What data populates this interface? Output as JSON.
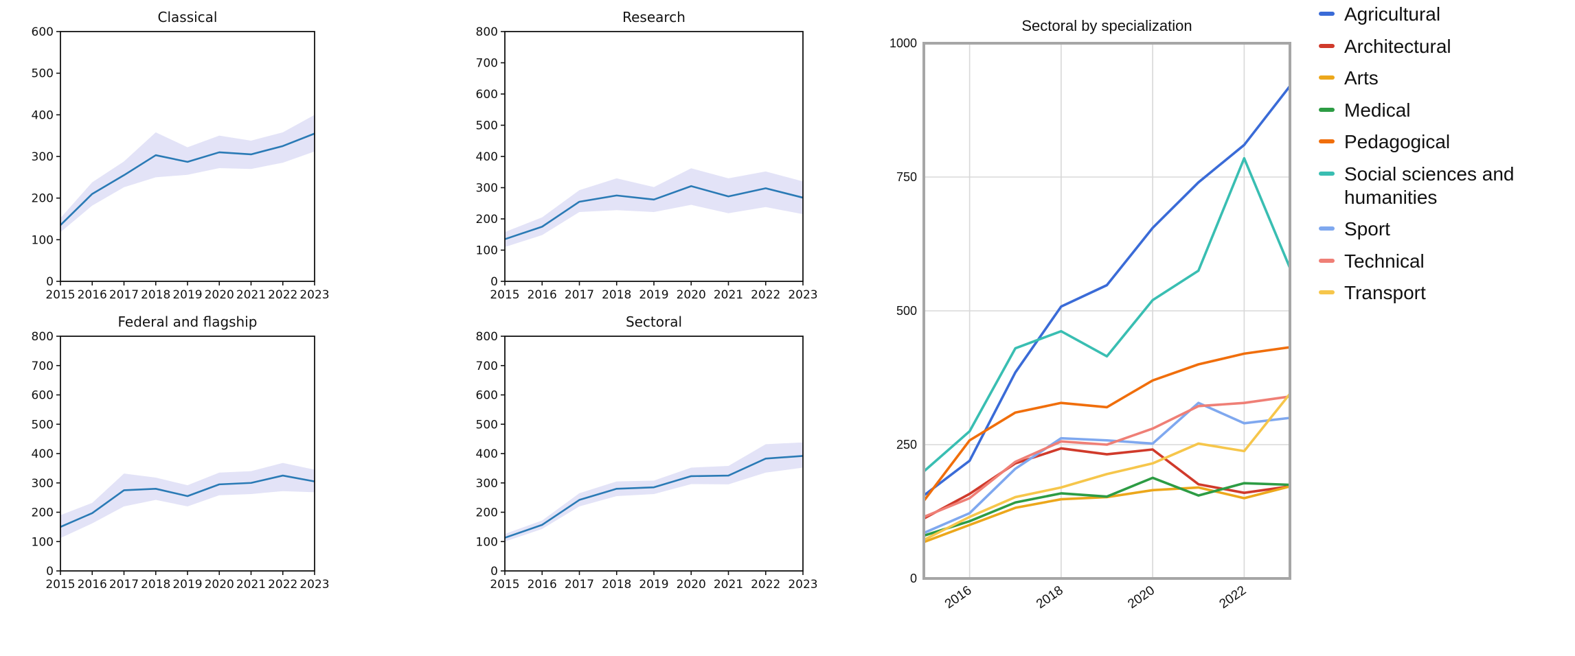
{
  "page": {
    "background": "#ffffff"
  },
  "chart_data": {
    "type": "line",
    "small_multiples": {
      "years": [
        2015,
        2016,
        2017,
        2018,
        2019,
        2020,
        2021,
        2022,
        2023
      ],
      "line_color": "#2A7AB5",
      "band_color": "#DCDCF5",
      "charts": [
        {
          "title": "Classical",
          "ylim": [
            0,
            600
          ],
          "yticks": [
            0,
            100,
            200,
            300,
            400,
            500,
            600
          ],
          "mean": [
            135,
            210,
            255,
            303,
            287,
            310,
            305,
            325,
            355
          ],
          "lower": [
            118,
            182,
            226,
            250,
            256,
            272,
            270,
            285,
            312
          ],
          "upper": [
            152,
            238,
            288,
            358,
            322,
            350,
            338,
            358,
            400
          ]
        },
        {
          "title": "Research",
          "ylim": [
            0,
            800
          ],
          "yticks": [
            0,
            100,
            200,
            300,
            400,
            500,
            600,
            700,
            800
          ],
          "mean": [
            135,
            175,
            255,
            275,
            262,
            305,
            272,
            298,
            268
          ],
          "lower": [
            110,
            148,
            222,
            228,
            222,
            245,
            218,
            238,
            215
          ],
          "upper": [
            158,
            205,
            292,
            330,
            302,
            362,
            330,
            352,
            320
          ]
        },
        {
          "title": "Federal and flagship",
          "ylim": [
            0,
            800
          ],
          "yticks": [
            0,
            100,
            200,
            300,
            400,
            500,
            600,
            700,
            800
          ],
          "mean": [
            150,
            197,
            275,
            280,
            255,
            295,
            300,
            325,
            305
          ],
          "lower": [
            112,
            162,
            220,
            242,
            220,
            258,
            262,
            272,
            268
          ],
          "upper": [
            190,
            232,
            332,
            318,
            292,
            335,
            340,
            368,
            345
          ]
        },
        {
          "title": "Sectoral",
          "ylim": [
            0,
            800
          ],
          "yticks": [
            0,
            100,
            200,
            300,
            400,
            500,
            600,
            700,
            800
          ],
          "mean": [
            113,
            157,
            242,
            280,
            285,
            323,
            325,
            383,
            392
          ],
          "lower": [
            100,
            143,
            220,
            255,
            262,
            296,
            295,
            335,
            352
          ],
          "upper": [
            126,
            172,
            265,
            305,
            308,
            352,
            358,
            432,
            438
          ]
        }
      ]
    },
    "specialization": {
      "title": "Sectoral by specialization",
      "years": [
        2015,
        2016,
        2017,
        2018,
        2019,
        2020,
        2021,
        2022,
        2023
      ],
      "ylim": [
        0,
        1000
      ],
      "yticks": [
        0,
        250,
        500,
        750,
        1000
      ],
      "xticks": [
        2016,
        2018,
        2020,
        2022
      ],
      "grid_color": "#d8d8d8",
      "frame_color": "#a6a6a6",
      "legend_position": "right",
      "series": [
        {
          "name": "Agricultural",
          "color": "#3A6BD7",
          "values": [
            155,
            220,
            385,
            508,
            548,
            655,
            740,
            810,
            920
          ]
        },
        {
          "name": "Architectural",
          "color": "#D03A2B",
          "values": [
            112,
            158,
            215,
            243,
            232,
            241,
            176,
            160,
            172
          ]
        },
        {
          "name": "Arts",
          "color": "#ECA71B",
          "values": [
            68,
            100,
            132,
            148,
            152,
            165,
            170,
            150,
            172
          ]
        },
        {
          "name": "Medical",
          "color": "#2D9C44",
          "values": [
            80,
            107,
            142,
            159,
            153,
            188,
            155,
            178,
            175
          ]
        },
        {
          "name": "Pedagogical",
          "color": "#F06E0B",
          "values": [
            145,
            258,
            310,
            328,
            320,
            370,
            400,
            420,
            432
          ]
        },
        {
          "name": "Social sciences and humanities",
          "color": "#39BEB2",
          "values": [
            200,
            275,
            430,
            462,
            415,
            520,
            575,
            785,
            580
          ]
        },
        {
          "name": "Sport",
          "color": "#7FA8EF",
          "values": [
            85,
            122,
            205,
            262,
            258,
            252,
            328,
            290,
            300
          ]
        },
        {
          "name": "Technical",
          "color": "#EF7F76",
          "values": [
            115,
            150,
            218,
            256,
            250,
            280,
            322,
            328,
            340
          ]
        },
        {
          "name": "Transport",
          "color": "#F6C64B",
          "values": [
            72,
            115,
            152,
            170,
            195,
            215,
            252,
            238,
            345
          ]
        }
      ]
    }
  }
}
